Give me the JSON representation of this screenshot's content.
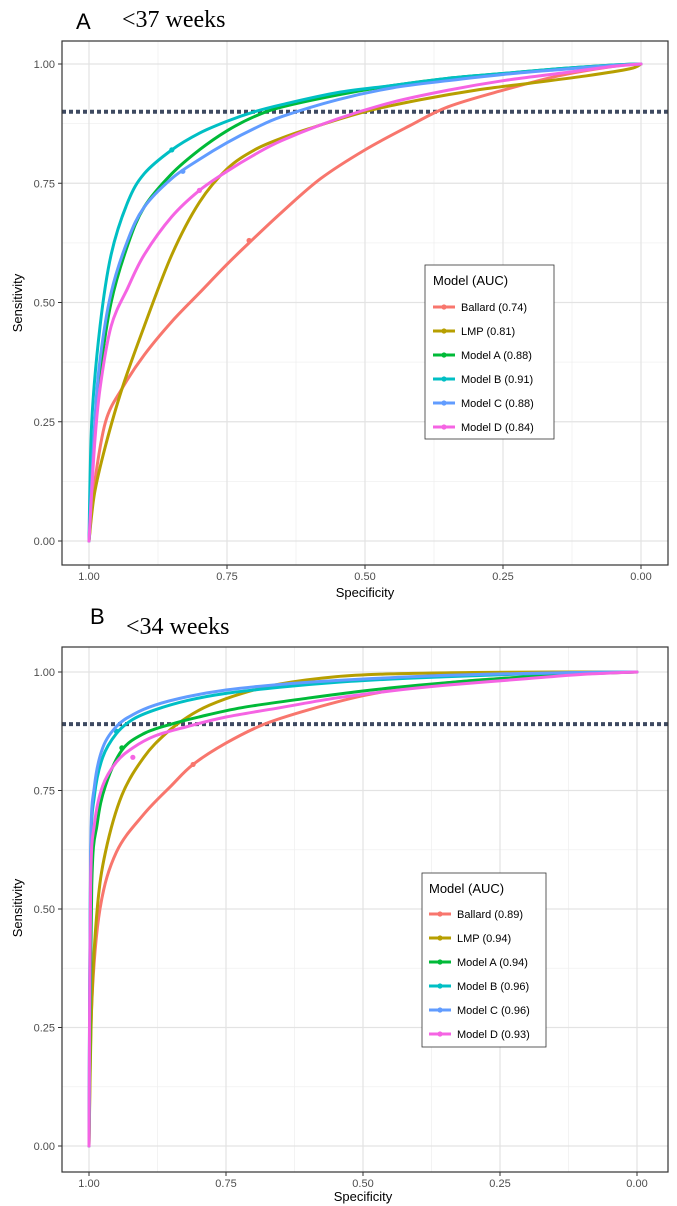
{
  "chart_data": [
    {
      "type": "line",
      "panel_label": "A",
      "title": "<37 weeks",
      "xlabel": "Specificity",
      "ylabel": "Sensitivity",
      "x_reversed": true,
      "xlim": [
        1.0,
        0.0
      ],
      "ylim": [
        0.0,
        1.0
      ],
      "xticks": [
        1.0,
        0.75,
        0.5,
        0.25,
        0.0
      ],
      "xtick_labels": [
        "1.00",
        "0.75",
        "0.50",
        "0.25",
        "0.00"
      ],
      "yticks": [
        0.0,
        0.25,
        0.5,
        0.75,
        1.0
      ],
      "ytick_labels": [
        "0.00",
        "0.25",
        "0.50",
        "0.75",
        "1.00"
      ],
      "grid": true,
      "reference_line": {
        "orientation": "horizontal",
        "y": 0.9,
        "style": "dotted",
        "color": "#3e4a61"
      },
      "legend": {
        "title": "Model (AUC)",
        "placement": "right-center"
      },
      "series": [
        {
          "name": "Ballard (0.74)",
          "color": "#f8766d",
          "x": [
            1.0,
            0.99,
            0.97,
            0.94,
            0.9,
            0.85,
            0.8,
            0.75,
            0.71,
            0.65,
            0.58,
            0.5,
            0.42,
            0.35,
            0.25,
            0.15,
            0.05,
            0.0
          ],
          "y": [
            0.0,
            0.12,
            0.25,
            0.32,
            0.39,
            0.46,
            0.52,
            0.58,
            0.625,
            0.69,
            0.76,
            0.82,
            0.87,
            0.91,
            0.945,
            0.975,
            0.995,
            1.0
          ],
          "marker": [
            0.71,
            0.63
          ]
        },
        {
          "name": "LMP (0.81)",
          "color": "#b79f00",
          "x": [
            1.0,
            0.99,
            0.97,
            0.94,
            0.9,
            0.85,
            0.8,
            0.75,
            0.7,
            0.65,
            0.6,
            0.5,
            0.4,
            0.3,
            0.2,
            0.1,
            0.02,
            0.0
          ],
          "y": [
            0.0,
            0.1,
            0.2,
            0.32,
            0.45,
            0.6,
            0.71,
            0.78,
            0.82,
            0.845,
            0.865,
            0.9,
            0.925,
            0.945,
            0.96,
            0.975,
            0.99,
            1.0
          ],
          "marker": null
        },
        {
          "name": "Model A (0.88)",
          "color": "#00ba38",
          "x": [
            1.0,
            0.99,
            0.98,
            0.96,
            0.93,
            0.9,
            0.85,
            0.8,
            0.75,
            0.7,
            0.65,
            0.55,
            0.45,
            0.35,
            0.25,
            0.15,
            0.05,
            0.0
          ],
          "y": [
            0.0,
            0.22,
            0.35,
            0.5,
            0.62,
            0.7,
            0.77,
            0.82,
            0.86,
            0.89,
            0.91,
            0.935,
            0.955,
            0.97,
            0.98,
            0.99,
            0.998,
            1.0
          ],
          "marker": null
        },
        {
          "name": "Model B (0.91)",
          "color": "#00bfc4",
          "x": [
            1.0,
            0.995,
            0.98,
            0.96,
            0.93,
            0.9,
            0.85,
            0.8,
            0.75,
            0.7,
            0.65,
            0.55,
            0.45,
            0.35,
            0.25,
            0.15,
            0.05,
            0.0
          ],
          "y": [
            0.0,
            0.25,
            0.45,
            0.6,
            0.71,
            0.77,
            0.82,
            0.855,
            0.88,
            0.9,
            0.915,
            0.94,
            0.955,
            0.97,
            0.98,
            0.99,
            0.998,
            1.0
          ],
          "marker": [
            0.85,
            0.82
          ]
        },
        {
          "name": "Model C (0.88)",
          "color": "#619cff",
          "x": [
            1.0,
            0.99,
            0.98,
            0.96,
            0.93,
            0.9,
            0.85,
            0.8,
            0.75,
            0.7,
            0.65,
            0.55,
            0.45,
            0.35,
            0.25,
            0.15,
            0.05,
            0.0
          ],
          "y": [
            0.0,
            0.24,
            0.38,
            0.52,
            0.63,
            0.7,
            0.76,
            0.8,
            0.835,
            0.865,
            0.89,
            0.925,
            0.95,
            0.965,
            0.978,
            0.988,
            0.997,
            1.0
          ],
          "marker": [
            0.83,
            0.775
          ]
        },
        {
          "name": "Model D (0.84)",
          "color": "#f564e3",
          "x": [
            1.0,
            0.99,
            0.98,
            0.96,
            0.93,
            0.9,
            0.85,
            0.8,
            0.75,
            0.7,
            0.65,
            0.55,
            0.45,
            0.35,
            0.25,
            0.15,
            0.05,
            0.0
          ],
          "y": [
            0.0,
            0.2,
            0.32,
            0.45,
            0.53,
            0.6,
            0.68,
            0.735,
            0.775,
            0.81,
            0.84,
            0.885,
            0.92,
            0.945,
            0.965,
            0.98,
            0.995,
            1.0
          ],
          "marker": [
            0.8,
            0.735
          ]
        }
      ]
    },
    {
      "type": "line",
      "panel_label": "B",
      "title": "<34 weeks",
      "xlabel": "Specificity",
      "ylabel": "Sensitivity",
      "x_reversed": true,
      "xlim": [
        1.0,
        0.0
      ],
      "ylim": [
        0.0,
        1.0
      ],
      "xticks": [
        1.0,
        0.75,
        0.5,
        0.25,
        0.0
      ],
      "xtick_labels": [
        "1.00",
        "0.75",
        "0.50",
        "0.25",
        "0.00"
      ],
      "yticks": [
        0.0,
        0.25,
        0.5,
        0.75,
        1.0
      ],
      "ytick_labels": [
        "0.00",
        "0.25",
        "0.50",
        "0.75",
        "1.00"
      ],
      "grid": true,
      "reference_line": {
        "orientation": "horizontal",
        "y": 0.89,
        "style": "dotted",
        "color": "#3e4a61"
      },
      "legend": {
        "title": "Model (AUC)",
        "placement": "right-center"
      },
      "series": [
        {
          "name": "Ballard (0.89)",
          "color": "#f8766d",
          "x": [
            1.0,
            0.995,
            0.98,
            0.95,
            0.9,
            0.85,
            0.81,
            0.75,
            0.68,
            0.6,
            0.5,
            0.4,
            0.3,
            0.2,
            0.1,
            0.0
          ],
          "y": [
            0.0,
            0.3,
            0.5,
            0.62,
            0.7,
            0.76,
            0.805,
            0.85,
            0.89,
            0.92,
            0.95,
            0.97,
            0.982,
            0.99,
            0.996,
            1.0
          ],
          "marker": [
            0.81,
            0.805
          ]
        },
        {
          "name": "LMP (0.94)",
          "color": "#b79f00",
          "x": [
            1.0,
            0.995,
            0.985,
            0.97,
            0.94,
            0.9,
            0.86,
            0.82,
            0.78,
            0.72,
            0.65,
            0.55,
            0.45,
            0.3,
            0.15,
            0.0
          ],
          "y": [
            0.0,
            0.3,
            0.5,
            0.62,
            0.74,
            0.82,
            0.87,
            0.905,
            0.93,
            0.955,
            0.975,
            0.99,
            0.996,
            0.999,
            1.0,
            1.0
          ],
          "marker": null
        },
        {
          "name": "Model A (0.94)",
          "color": "#00ba38",
          "x": [
            1.0,
            0.995,
            0.985,
            0.97,
            0.94,
            0.9,
            0.85,
            0.8,
            0.72,
            0.6,
            0.5,
            0.4,
            0.3,
            0.2,
            0.1,
            0.0
          ],
          "y": [
            0.0,
            0.55,
            0.68,
            0.76,
            0.835,
            0.87,
            0.89,
            0.905,
            0.925,
            0.945,
            0.96,
            0.972,
            0.982,
            0.99,
            0.996,
            1.0
          ],
          "marker": [
            0.94,
            0.84
          ]
        },
        {
          "name": "Model B (0.96)",
          "color": "#00bfc4",
          "x": [
            1.0,
            0.997,
            0.99,
            0.975,
            0.95,
            0.92,
            0.88,
            0.82,
            0.75,
            0.65,
            0.55,
            0.45,
            0.35,
            0.2,
            0.1,
            0.0
          ],
          "y": [
            0.0,
            0.6,
            0.74,
            0.82,
            0.87,
            0.9,
            0.92,
            0.94,
            0.955,
            0.968,
            0.978,
            0.985,
            0.99,
            0.996,
            0.999,
            1.0
          ],
          "marker": [
            0.95,
            0.875
          ]
        },
        {
          "name": "Model C (0.96)",
          "color": "#619cff",
          "x": [
            1.0,
            0.997,
            0.99,
            0.975,
            0.95,
            0.92,
            0.88,
            0.82,
            0.75,
            0.65,
            0.55,
            0.45,
            0.35,
            0.2,
            0.1,
            0.0
          ],
          "y": [
            0.0,
            0.62,
            0.76,
            0.84,
            0.885,
            0.91,
            0.93,
            0.948,
            0.962,
            0.974,
            0.982,
            0.988,
            0.993,
            0.997,
            0.999,
            1.0
          ],
          "marker": null
        },
        {
          "name": "Model D (0.93)",
          "color": "#f564e3",
          "x": [
            1.0,
            0.997,
            0.99,
            0.975,
            0.95,
            0.92,
            0.88,
            0.82,
            0.75,
            0.65,
            0.55,
            0.45,
            0.35,
            0.2,
            0.1,
            0.0
          ],
          "y": [
            0.0,
            0.55,
            0.68,
            0.76,
            0.81,
            0.84,
            0.865,
            0.885,
            0.905,
            0.925,
            0.945,
            0.96,
            0.972,
            0.986,
            0.995,
            1.0
          ],
          "marker": [
            0.92,
            0.82
          ]
        }
      ]
    }
  ]
}
